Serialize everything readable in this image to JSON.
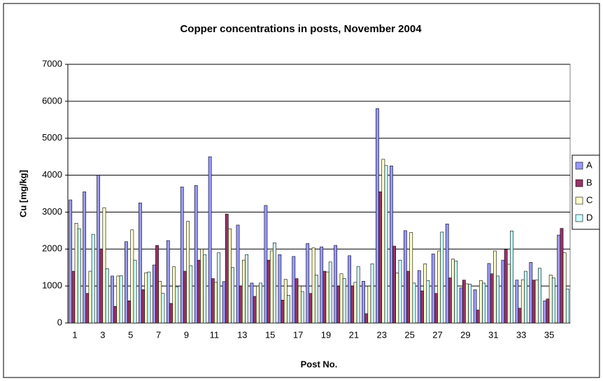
{
  "chart_data": {
    "type": "bar",
    "title": "Copper concentrations in posts, November 2004",
    "x_label": "Post No.",
    "y_label": "Cu [mg/kg]",
    "categories": [
      1,
      null,
      3,
      null,
      5,
      null,
      7,
      null,
      9,
      null,
      11,
      null,
      13,
      null,
      15,
      null,
      17,
      null,
      19,
      null,
      21,
      null,
      23,
      null,
      25,
      null,
      27,
      null,
      29,
      null,
      31,
      null,
      33,
      null,
      35,
      null
    ],
    "series": [
      {
        "name": "A",
        "color": "#9999ff",
        "values": [
          3330,
          3550,
          4000,
          1270,
          2200,
          3250,
          1570,
          2230,
          3680,
          3720,
          4500,
          1120,
          2650,
          1080,
          3180,
          1850,
          1800,
          2150,
          2060,
          2100,
          1820,
          1130,
          5800,
          4250,
          2500,
          1420,
          1870,
          2680,
          950,
          900,
          1610,
          1700,
          1160,
          1640,
          600,
          2380
        ]
      },
      {
        "name": "B",
        "color": "#993366",
        "values": [
          1400,
          800,
          2000,
          450,
          600,
          900,
          2100,
          530,
          1400,
          1700,
          1200,
          2950,
          1000,
          720,
          1700,
          620,
          1200,
          800,
          1400,
          1000,
          1000,
          250,
          3550,
          2080,
          1400,
          870,
          800,
          1220,
          1160,
          350,
          1330,
          1990,
          400,
          1160,
          650,
          2560
        ]
      },
      {
        "name": "C",
        "color": "#ffffcc",
        "values": [
          2700,
          1400,
          3120,
          1270,
          2520,
          1360,
          1130,
          1520,
          2750,
          2000,
          1100,
          2550,
          1700,
          1000,
          1950,
          1180,
          1000,
          2030,
          1380,
          1330,
          1100,
          1000,
          4430,
          1350,
          2450,
          1600,
          1950,
          1730,
          1060,
          1150,
          1950,
          1590,
          1170,
          1160,
          1300,
          1900
        ]
      },
      {
        "name": "D",
        "color": "#ccffff",
        "values": [
          2550,
          2400,
          1470,
          1280,
          1700,
          1380,
          800,
          980,
          1550,
          1850,
          1900,
          1500,
          1850,
          1080,
          2170,
          750,
          850,
          1300,
          1650,
          1200,
          1530,
          1600,
          4260,
          1700,
          1080,
          1150,
          2460,
          1680,
          1050,
          1080,
          1270,
          2490,
          1400,
          1480,
          1220,
          920
        ]
      }
    ],
    "ylim": [
      0,
      7000
    ],
    "yticks": [
      0,
      1000,
      2000,
      3000,
      4000,
      5000,
      6000,
      7000
    ],
    "grid": true,
    "legend": "right"
  }
}
